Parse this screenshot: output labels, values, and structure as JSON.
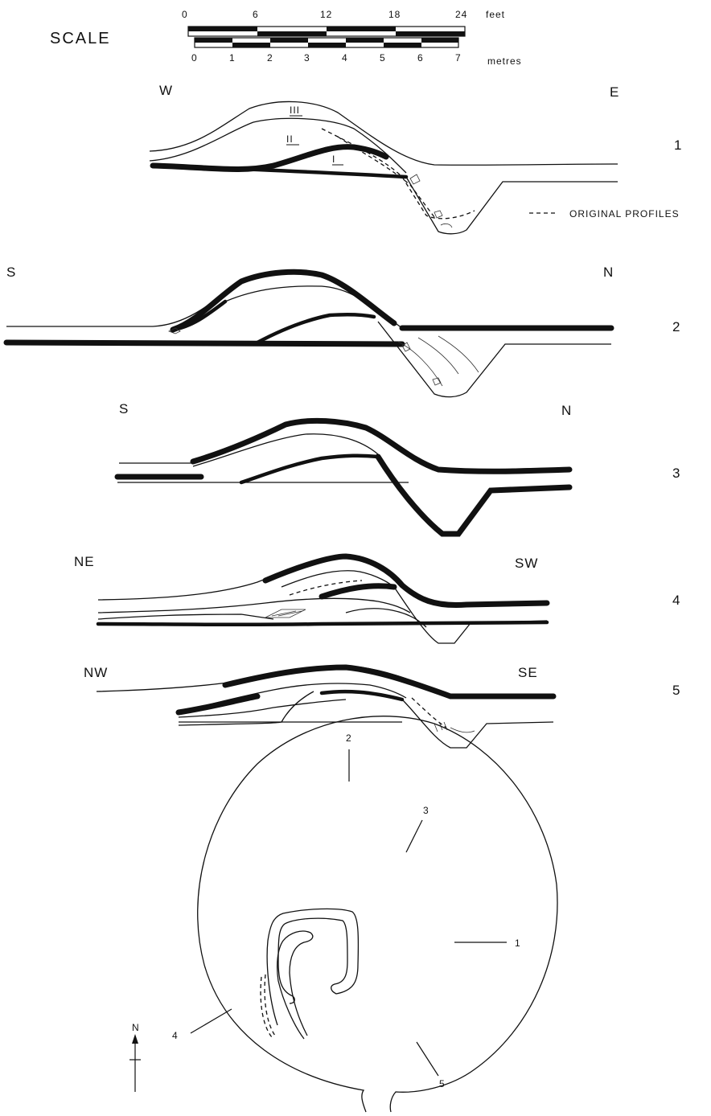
{
  "scale": {
    "title": "SCALE",
    "feet_ticks": [
      "0",
      "6",
      "12",
      "18",
      "24"
    ],
    "feet_unit": "feet",
    "metre_ticks": [
      "0",
      "1",
      "2",
      "3",
      "4",
      "5",
      "6",
      "7"
    ],
    "metre_unit": "metres"
  },
  "legend": {
    "dash_label": "ORIGINAL PROFILES"
  },
  "sections": [
    {
      "number": "1",
      "left": "W",
      "right": "E",
      "layers": [
        "III",
        "II",
        "I"
      ]
    },
    {
      "number": "2",
      "left": "S",
      "right": "N"
    },
    {
      "number": "3",
      "left": "S",
      "right": "N"
    },
    {
      "number": "4",
      "left": "NE",
      "right": "SW"
    },
    {
      "number": "5",
      "left": "NW",
      "right": "SE"
    }
  ],
  "plan": {
    "section_labels": [
      "1",
      "2",
      "3",
      "4",
      "5"
    ],
    "north_label": "N"
  }
}
